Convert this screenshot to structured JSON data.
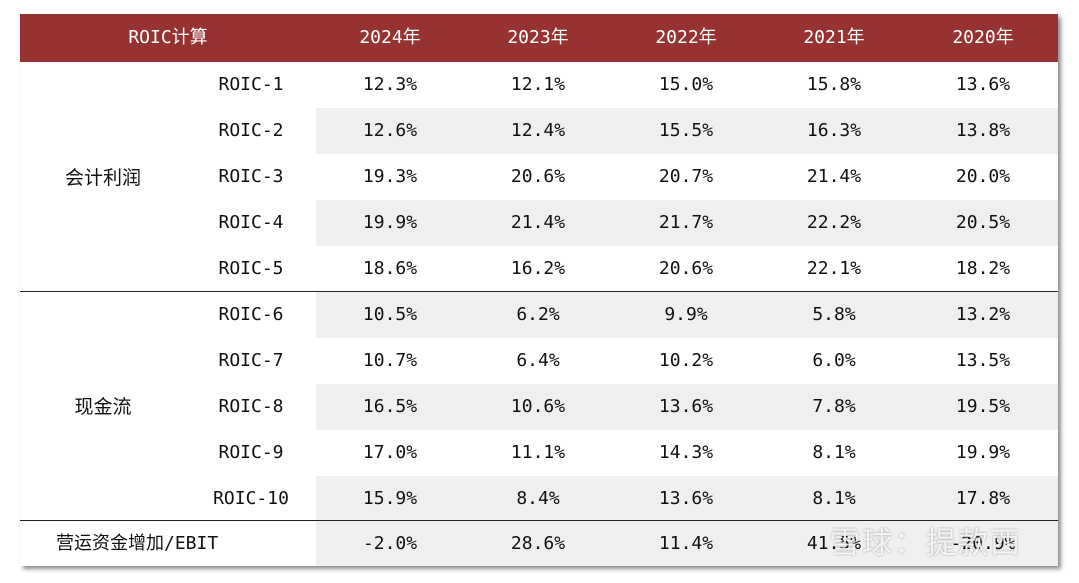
{
  "table": {
    "header": {
      "label": "ROIC计算",
      "years": [
        "2024年",
        "2023年",
        "2022年",
        "2021年",
        "2020年"
      ]
    },
    "groups": {
      "accounting": "会计利润",
      "cashflow": "现金流"
    },
    "rows": [
      {
        "metric": "ROIC-1",
        "values": [
          "12.3%",
          "12.1%",
          "15.0%",
          "15.8%",
          "13.6%"
        ]
      },
      {
        "metric": "ROIC-2",
        "values": [
          "12.6%",
          "12.4%",
          "15.5%",
          "16.3%",
          "13.8%"
        ]
      },
      {
        "metric": "ROIC-3",
        "values": [
          "19.3%",
          "20.6%",
          "20.7%",
          "21.4%",
          "20.0%"
        ]
      },
      {
        "metric": "ROIC-4",
        "values": [
          "19.9%",
          "21.4%",
          "21.7%",
          "22.2%",
          "20.5%"
        ]
      },
      {
        "metric": "ROIC-5",
        "values": [
          "18.6%",
          "16.2%",
          "20.6%",
          "22.1%",
          "18.2%"
        ]
      },
      {
        "metric": "ROIC-6",
        "values": [
          "10.5%",
          "6.2%",
          "9.9%",
          "5.8%",
          "13.2%"
        ]
      },
      {
        "metric": "ROIC-7",
        "values": [
          "10.7%",
          "6.4%",
          "10.2%",
          "6.0%",
          "13.5%"
        ]
      },
      {
        "metric": "ROIC-8",
        "values": [
          "16.5%",
          "10.6%",
          "13.6%",
          "7.8%",
          "19.5%"
        ]
      },
      {
        "metric": "ROIC-9",
        "values": [
          "17.0%",
          "11.1%",
          "14.3%",
          "8.1%",
          "19.9%"
        ]
      },
      {
        "metric": "ROIC-10",
        "values": [
          "15.9%",
          "8.4%",
          "13.6%",
          "8.1%",
          "17.8%"
        ]
      },
      {
        "metric": "营运资金增加/EBIT",
        "values": [
          "-2.0%",
          "28.6%",
          "11.4%",
          "41.5%",
          "-20.9%"
        ]
      }
    ]
  },
  "watermark": "雪球：提款西",
  "colors": {
    "header_bg": "#963330",
    "shade": "#efefef"
  }
}
